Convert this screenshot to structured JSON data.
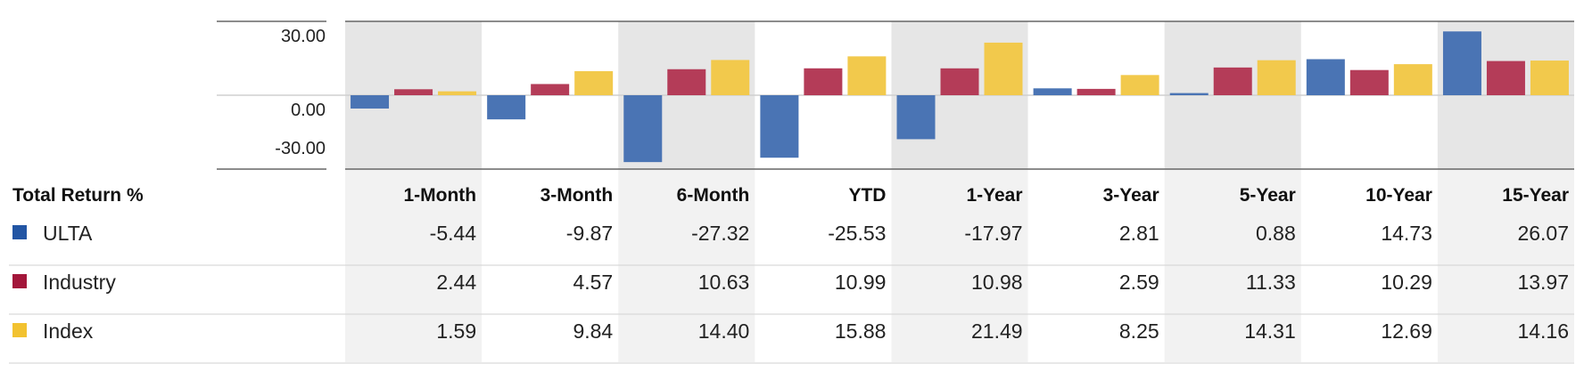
{
  "chart_data": {
    "type": "bar",
    "table_header": "Total Return %",
    "categories": [
      "1-Month",
      "3-Month",
      "6-Month",
      "YTD",
      "1-Year",
      "3-Year",
      "5-Year",
      "10-Year",
      "15-Year"
    ],
    "series": [
      {
        "name": "ULTA",
        "color": "#4a74b4",
        "swatch": "#2255a4",
        "values": [
          -5.44,
          -9.87,
          -27.32,
          -25.53,
          -17.97,
          2.81,
          0.88,
          14.73,
          26.07
        ],
        "labels": [
          "-5.44",
          "-9.87",
          "-27.32",
          "-25.53",
          "-17.97",
          "2.81",
          "0.88",
          "14.73",
          "26.07"
        ]
      },
      {
        "name": "Industry",
        "color": "#b43c58",
        "swatch": "#a3163a",
        "values": [
          2.44,
          4.57,
          10.63,
          10.99,
          10.98,
          2.59,
          11.33,
          10.29,
          13.97
        ],
        "labels": [
          "2.44",
          "4.57",
          "10.63",
          "10.99",
          "10.98",
          "2.59",
          "11.33",
          "10.29",
          "13.97"
        ]
      },
      {
        "name": "Index",
        "color": "#f2c94c",
        "swatch": "#f2c230",
        "values": [
          1.59,
          9.84,
          14.4,
          15.88,
          21.49,
          8.25,
          14.31,
          12.69,
          14.16
        ],
        "labels": [
          "1.59",
          "9.84",
          "14.40",
          "15.88",
          "21.49",
          "8.25",
          "14.31",
          "12.69",
          "14.16"
        ]
      }
    ],
    "yticks": [
      30,
      0,
      -30
    ],
    "ytick_labels": [
      "30.00",
      "0.00",
      "-30.00"
    ],
    "ylim": [
      -30,
      30
    ],
    "grid": true,
    "legend_placement": "left table rows"
  }
}
